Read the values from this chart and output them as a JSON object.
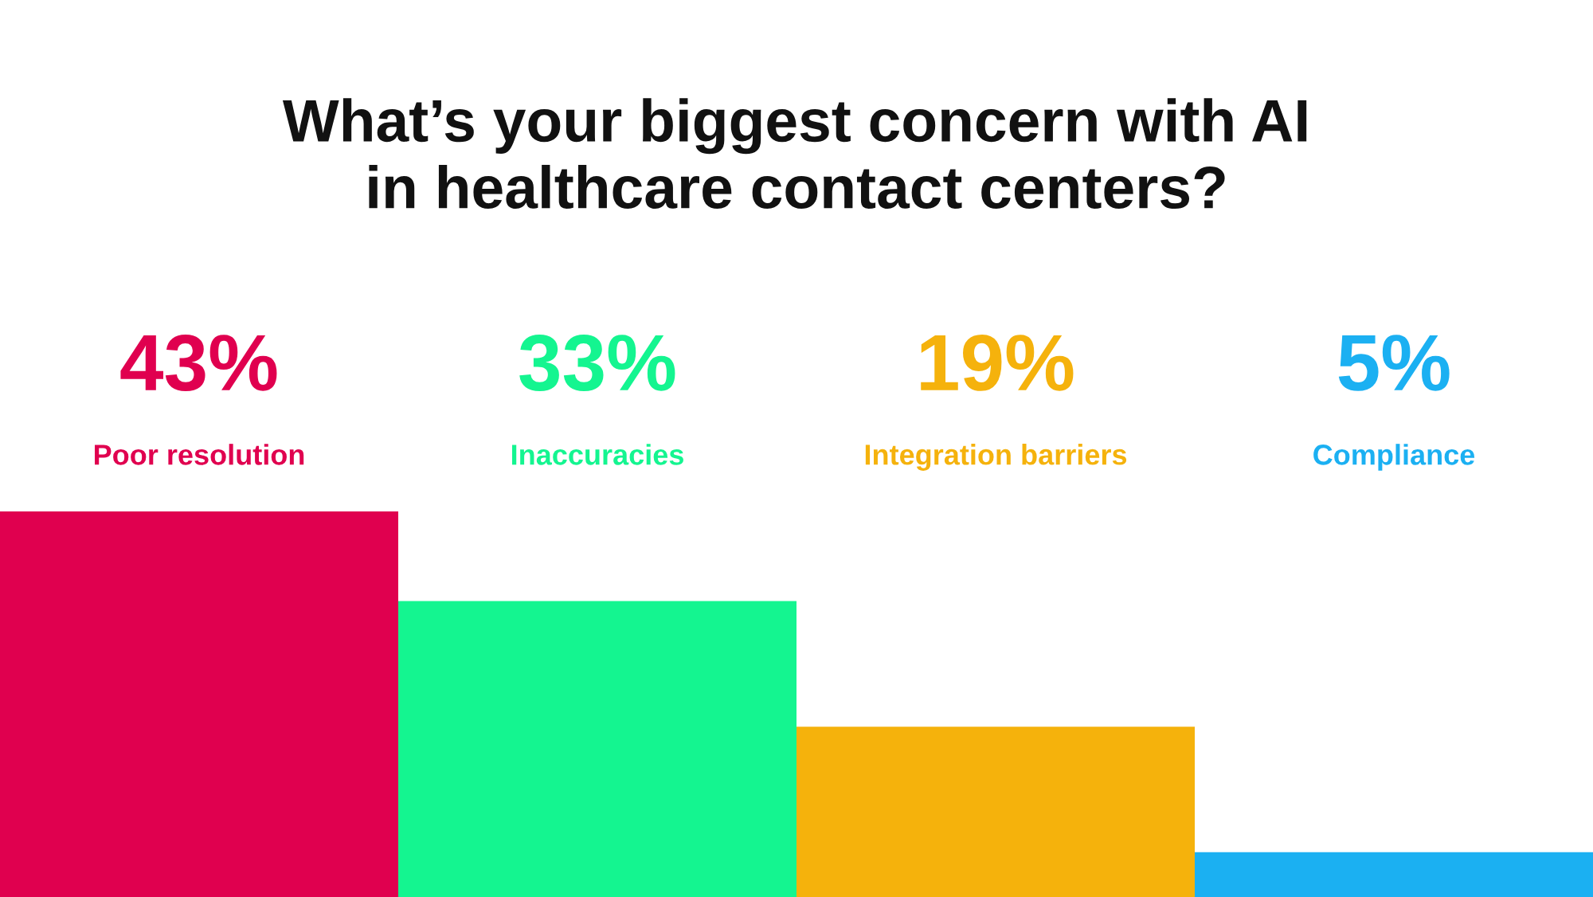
{
  "chart_data": {
    "type": "bar",
    "title": "What’s your biggest concern with AI\nin healthcare contact centers?",
    "categories": [
      "Poor resolution",
      "Inaccuracies",
      "Integration barriers",
      "Compliance"
    ],
    "values": [
      43,
      33,
      19,
      5
    ],
    "value_labels": [
      "43%",
      "33%",
      "19%",
      "5%"
    ],
    "colors": [
      "#e0004f",
      "#14f590",
      "#f5b20c",
      "#1bb0f2"
    ]
  }
}
